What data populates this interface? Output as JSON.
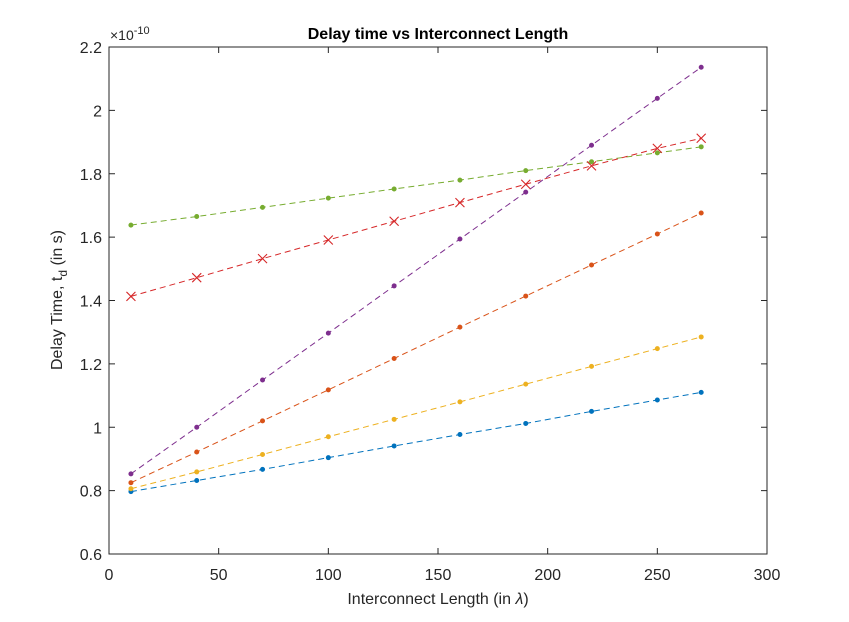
{
  "chart_data": {
    "type": "line",
    "title": "Delay time vs Interconnect Length",
    "xlabel_prefix": "Interconnect Length (in ",
    "xlabel_symbol": "λ",
    "xlabel_suffix": ")",
    "ylabel_prefix": "Delay Time, t",
    "ylabel_sub": "d",
    "ylabel_suffix": " (in s)",
    "y_exponent_base": "×10",
    "y_exponent": "-10",
    "xlim": [
      0,
      300
    ],
    "ylim": [
      0.6,
      2.2
    ],
    "x_ticks": [
      0,
      50,
      100,
      150,
      200,
      250,
      300
    ],
    "y_ticks": [
      0.6,
      0.8,
      1,
      1.2,
      1.4,
      1.6,
      1.8,
      2,
      2.2
    ],
    "x_tick_labels": [
      "0",
      "50",
      "100",
      "150",
      "200",
      "250",
      "300"
    ],
    "y_tick_labels": [
      "0.6",
      "0.8",
      "1",
      "1.2",
      "1.4",
      "1.6",
      "1.8",
      "2",
      "2.2"
    ],
    "grid": false,
    "line_style": "dashed",
    "x": [
      10,
      40,
      70,
      100,
      130,
      160,
      190,
      220,
      250,
      270
    ],
    "series": [
      {
        "color": "#0072BD",
        "marker": "dot",
        "values": [
          0.797,
          0.832,
          0.867,
          0.904,
          0.941,
          0.977,
          1.012,
          1.05,
          1.086,
          1.11
        ]
      },
      {
        "color": "#D95319",
        "marker": "dot",
        "values": [
          0.825,
          0.922,
          1.02,
          1.118,
          1.217,
          1.316,
          1.414,
          1.512,
          1.61,
          1.676
        ]
      },
      {
        "color": "#EDB120",
        "marker": "dot",
        "values": [
          0.806,
          0.859,
          0.914,
          0.97,
          1.025,
          1.08,
          1.136,
          1.192,
          1.248,
          1.285
        ]
      },
      {
        "color": "#7E2F8E",
        "marker": "dot",
        "values": [
          0.853,
          1.0,
          1.149,
          1.297,
          1.446,
          1.594,
          1.742,
          1.89,
          2.038,
          2.136
        ]
      },
      {
        "color": "#77AC30",
        "marker": "dot",
        "values": [
          1.638,
          1.665,
          1.694,
          1.723,
          1.752,
          1.78,
          1.81,
          1.838,
          1.866,
          1.885
        ]
      },
      {
        "color": "#D62728",
        "marker": "x",
        "values": [
          1.413,
          1.472,
          1.532,
          1.591,
          1.65,
          1.709,
          1.767,
          1.825,
          1.88,
          1.912
        ]
      }
    ]
  }
}
